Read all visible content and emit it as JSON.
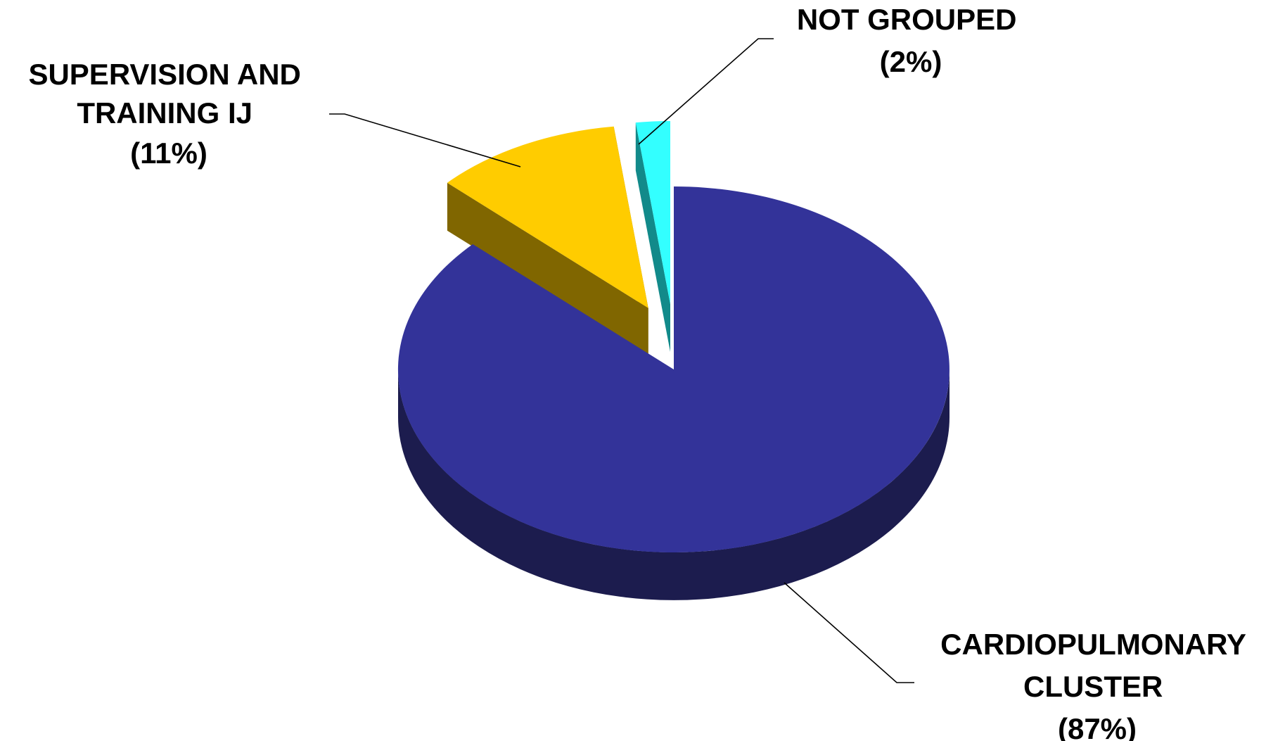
{
  "chart_data": {
    "type": "pie",
    "style": "3d",
    "title": "",
    "slices": [
      {
        "lines": [
          "CARDIOPULMONARY",
          "CLUSTER"
        ],
        "pct_label": "(87%)",
        "value": 87,
        "color": "#333399",
        "side_color": "#1c1c4e",
        "exploded": false
      },
      {
        "lines": [
          "SUPERVISION AND",
          "TRAINING IJ"
        ],
        "pct_label": "(11%)",
        "value": 11,
        "color": "#ffcc00",
        "side_color": "#806600",
        "exploded": true
      },
      {
        "lines": [
          "NOT GROUPED"
        ],
        "pct_label": "(2%)",
        "value": 2,
        "color": "#33ffff",
        "side_color": "#128a8a",
        "exploded": true
      }
    ]
  }
}
